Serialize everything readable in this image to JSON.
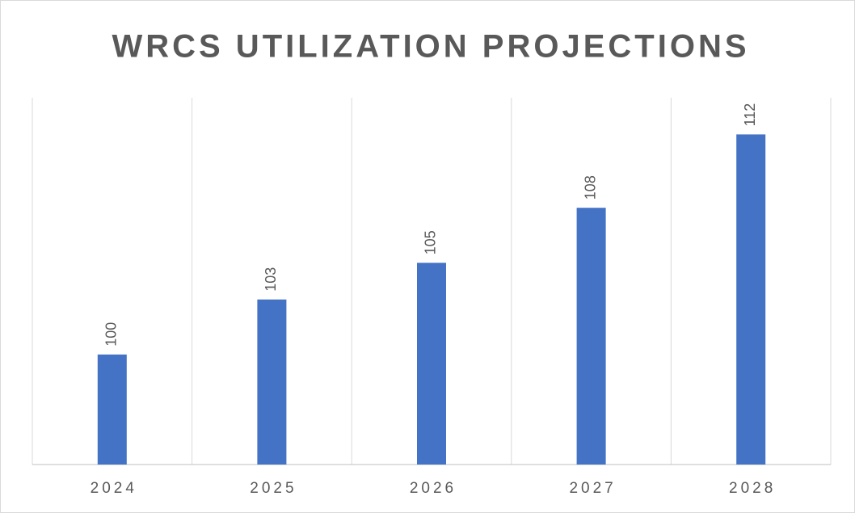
{
  "chart_data": {
    "type": "bar",
    "title": "WRCS UTILIZATION PROJECTIONS",
    "categories": [
      "2024",
      "2025",
      "2026",
      "2027",
      "2028"
    ],
    "values": [
      100,
      103,
      105,
      108,
      112
    ],
    "color": "#4472c4",
    "ylim": [
      94,
      114
    ]
  }
}
